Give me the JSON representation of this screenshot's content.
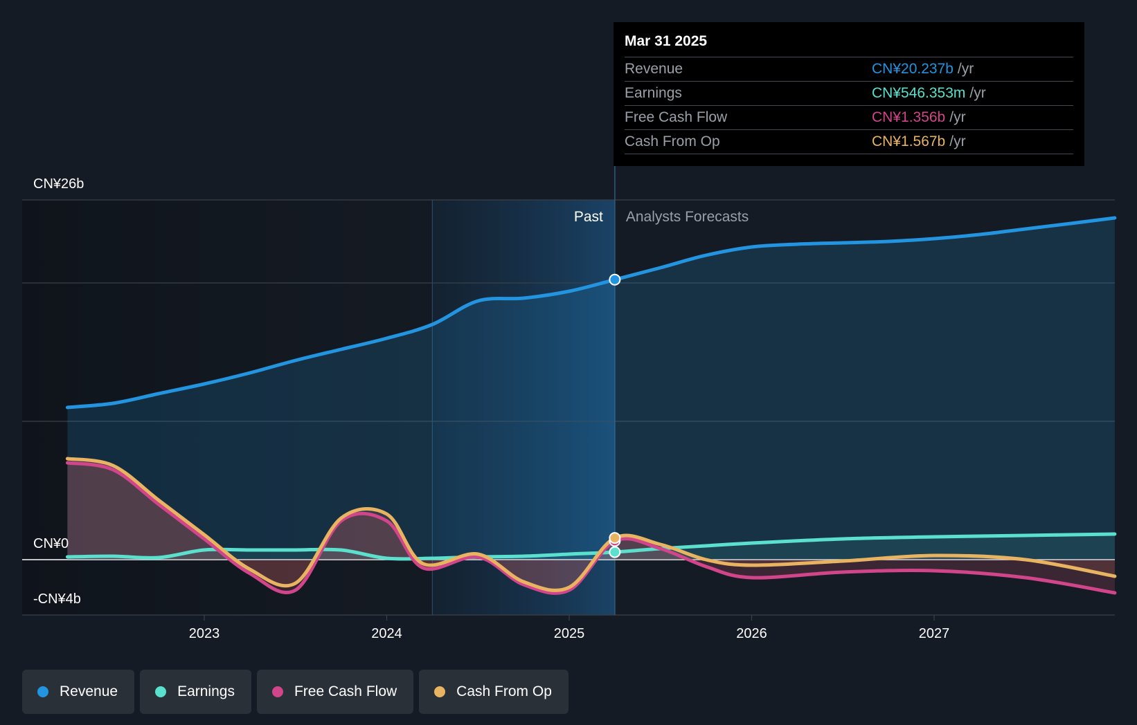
{
  "colors": {
    "background": "#151b24",
    "revenue": "#2394df",
    "earnings": "#5be0cd",
    "free_cash_flow": "#d1458a",
    "cash_from_op": "#e9b462",
    "grid": "#3a414b"
  },
  "tooltip": {
    "date": "Mar 31 2025",
    "rows": [
      {
        "label": "Revenue",
        "value": "CN¥20.237b",
        "unit": "/yr"
      },
      {
        "label": "Earnings",
        "value": "CN¥546.353m",
        "unit": "/yr"
      },
      {
        "label": "Free Cash Flow",
        "value": "CN¥1.356b",
        "unit": "/yr"
      },
      {
        "label": "Cash From Op",
        "value": "CN¥1.567b",
        "unit": "/yr"
      }
    ]
  },
  "regions": {
    "past": "Past",
    "forecast": "Analysts Forecasts"
  },
  "legend": [
    {
      "label": "Revenue",
      "color": "#2394df"
    },
    {
      "label": "Earnings",
      "color": "#5be0cd"
    },
    {
      "label": "Free Cash Flow",
      "color": "#d1458a"
    },
    {
      "label": "Cash From Op",
      "color": "#e9b462"
    }
  ],
  "chart_data": {
    "type": "line",
    "y_labels": [
      "CN¥26b",
      "CN¥0",
      "-CN¥4b"
    ],
    "ylim": [
      -4,
      26
    ],
    "x_ticks": [
      "2023",
      "2024",
      "2025",
      "2026",
      "2027"
    ],
    "xlim": [
      2022.25,
      2027.99
    ],
    "forecast_start": 2025.25,
    "highlight_start": 2024.25,
    "series": [
      {
        "name": "Revenue",
        "color": "#2394df",
        "x": [
          2022.25,
          2022.5,
          2022.75,
          2023.0,
          2023.25,
          2023.5,
          2023.75,
          2024.0,
          2024.25,
          2024.5,
          2024.75,
          2025.0,
          2025.25,
          2025.5,
          2025.75,
          2026.0,
          2026.25,
          2026.5,
          2026.75,
          2027.0,
          2027.25,
          2027.5,
          2027.75,
          2027.99
        ],
        "values": [
          11.0,
          11.3,
          12.0,
          12.7,
          13.5,
          14.4,
          15.2,
          16.0,
          17.0,
          18.7,
          18.9,
          19.4,
          20.237,
          21.1,
          22.0,
          22.6,
          22.8,
          22.9,
          23.0,
          23.2,
          23.5,
          23.9,
          24.3,
          24.7
        ]
      },
      {
        "name": "Earnings",
        "color": "#5be0cd",
        "x": [
          2022.25,
          2022.5,
          2022.75,
          2023.0,
          2023.25,
          2023.5,
          2023.75,
          2024.0,
          2024.25,
          2024.5,
          2024.75,
          2025.0,
          2025.25,
          2025.5,
          2025.75,
          2026.0,
          2026.5,
          2027.0,
          2027.5,
          2027.99
        ],
        "values": [
          0.2,
          0.25,
          0.15,
          0.7,
          0.7,
          0.7,
          0.7,
          0.1,
          0.1,
          0.2,
          0.25,
          0.4,
          0.546,
          0.8,
          1.0,
          1.2,
          1.5,
          1.65,
          1.75,
          1.85
        ]
      },
      {
        "name": "Free Cash Flow",
        "color": "#d1458a",
        "x": [
          2022.25,
          2022.5,
          2022.75,
          2023.0,
          2023.25,
          2023.5,
          2023.75,
          2024.0,
          2024.2,
          2024.5,
          2024.75,
          2025.0,
          2025.25,
          2025.5,
          2025.75,
          2026.0,
          2026.5,
          2027.0,
          2027.5,
          2027.99
        ],
        "values": [
          7.0,
          6.5,
          4.0,
          1.5,
          -1.0,
          -2.2,
          2.8,
          2.8,
          -0.6,
          0.2,
          -1.8,
          -2.2,
          1.356,
          0.8,
          -0.5,
          -1.3,
          -0.9,
          -0.8,
          -1.3,
          -2.4
        ]
      },
      {
        "name": "Cash From Op",
        "color": "#e9b462",
        "x": [
          2022.25,
          2022.5,
          2022.75,
          2023.0,
          2023.25,
          2023.5,
          2023.75,
          2024.0,
          2024.2,
          2024.5,
          2024.75,
          2025.0,
          2025.25,
          2025.5,
          2025.75,
          2026.0,
          2026.5,
          2027.0,
          2027.5,
          2027.99
        ],
        "values": [
          7.3,
          6.8,
          4.3,
          1.8,
          -0.7,
          -1.7,
          3.0,
          3.3,
          -0.3,
          0.4,
          -1.6,
          -2.0,
          1.567,
          1.1,
          0.0,
          -0.4,
          -0.1,
          0.3,
          0.0,
          -1.2
        ]
      }
    ]
  }
}
